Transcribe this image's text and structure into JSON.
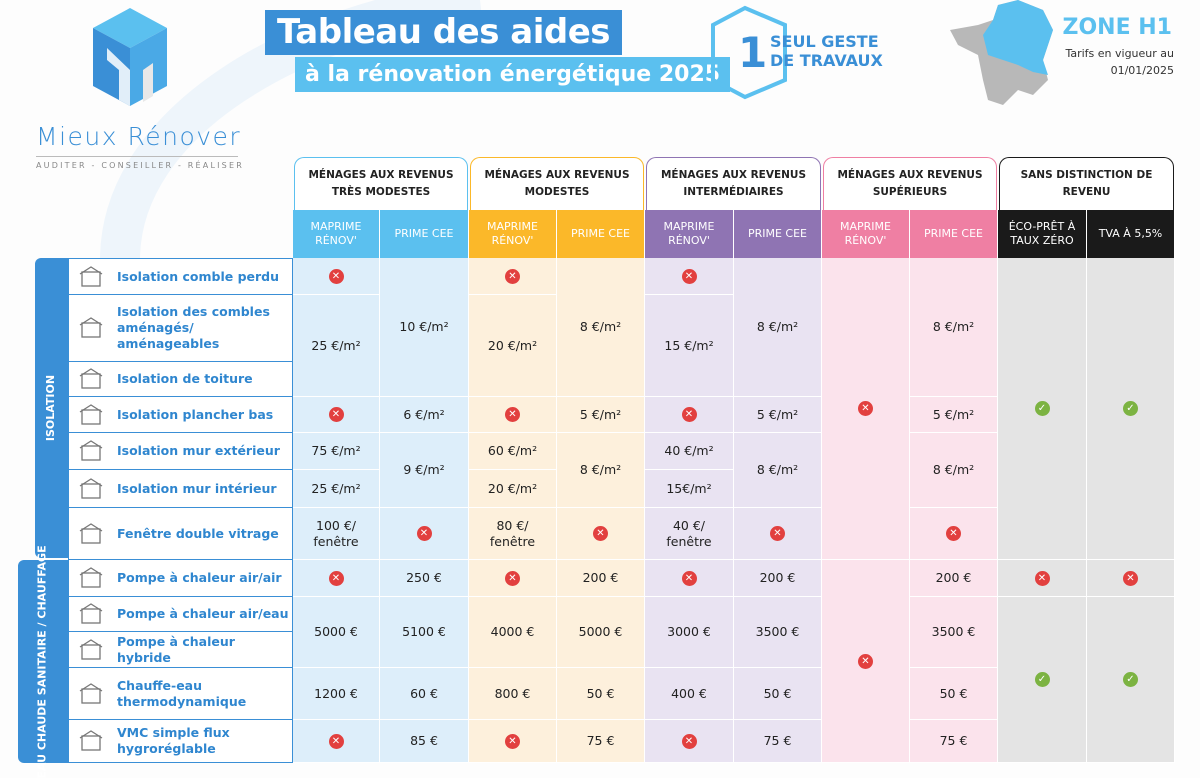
{
  "header": {
    "title": "Tableau des aides",
    "subtitle": "à la rénovation énergétique 2025",
    "badge_number": "1",
    "badge_text": "SEUL GESTE DE TRAVAUX",
    "zone": "ZONE H1",
    "tarifs": "Tarifs en vigueur au 01/01/2025"
  },
  "brand": {
    "name": "Mieux Rénover",
    "tagline": "AUDITER - CONSEILLER - RÉALISER"
  },
  "colors": {
    "blue": "#3a8fd6",
    "lightblue": "#5bc0ef",
    "orange": "#fbb829",
    "purple": "#8f74b3",
    "pink": "#ef7fa3",
    "black": "#1a1a1a"
  },
  "groups": [
    "MÉNAGES AUX REVENUS TRÈS MODESTES",
    "MÉNAGES AUX REVENUS MODESTES",
    "MÉNAGES AUX REVENUS INTERMÉDIAIRES",
    "MÉNAGES AUX REVENUS SUPÉRIEURS",
    "SANS DISTINCTION DE REVENU"
  ],
  "subheaders": [
    "MAPRIME RÉNOV'",
    "PRIME CEE",
    "MAPRIME RÉNOV'",
    "PRIME CEE",
    "MAPRIME RÉNOV'",
    "PRIME CEE",
    "MAPRIME RÉNOV'",
    "PRIME CEE",
    "ÉCO-PRÊT À TAUX ZÉRO",
    "TVA À 5,5%"
  ],
  "categories": [
    "ISOLATION",
    "EAU CHAUDE SANITAIRE / CHAUFFAGE"
  ],
  "rows": [
    {
      "label": "Isolation comble perdu",
      "icon": "attic-icon"
    },
    {
      "label": "Isolation des combles aménagés/ aménageables",
      "icon": "loft-icon"
    },
    {
      "label": "Isolation de toiture",
      "icon": "roof-icon"
    },
    {
      "label": "Isolation plancher bas",
      "icon": "floor-icon"
    },
    {
      "label": "Isolation mur extérieur",
      "icon": "exterior-wall-icon"
    },
    {
      "label": "Isolation mur intérieur",
      "icon": "interior-wall-icon"
    },
    {
      "label": "Fenêtre double vitrage",
      "icon": "window-icon"
    },
    {
      "label": "Pompe à chaleur air/air",
      "icon": "air-conditioner-icon"
    },
    {
      "label": "Pompe à chaleur air/eau",
      "icon": "fan-icon"
    },
    {
      "label": "Pompe à chaleur hybride",
      "icon": "heat-pump-icon"
    },
    {
      "label": "Chauffe-eau thermodynamique",
      "icon": "water-heater-icon"
    },
    {
      "label": "VMC simple flux hygroréglable",
      "icon": "ventilation-icon"
    }
  ],
  "columns": [
    [
      "x",
      "25 €/m²",
      "x",
      "75 €/m²",
      "25 €/m²",
      "100 €/ fenêtre",
      "x",
      "5000 €",
      "1200 €",
      "x"
    ],
    [
      "10 €/m²",
      "6 €/m²",
      "9 €/m²",
      "x",
      "250 €",
      "5100 €",
      "60 €",
      "85 €"
    ],
    [
      "x",
      "20 €/m²",
      "x",
      "60 €/m²",
      "20 €/m²",
      "80 €/ fenêtre",
      "x",
      "4000 €",
      "800 €",
      "x"
    ],
    [
      "8 €/m²",
      "5 €/m²",
      "8 €/m²",
      "x",
      "200 €",
      "5000 €",
      "50 €",
      "75 €"
    ],
    [
      "x",
      "15 €/m²",
      "x",
      "40 €/m²",
      "15€/m²",
      "40 €/ fenêtre",
      "x",
      "3000 €",
      "400 €",
      "x"
    ],
    [
      "8 €/m²",
      "5 €/m²",
      "8 €/m²",
      "x",
      "200 €",
      "3500 €",
      "50 €",
      "75 €"
    ],
    [
      "x",
      "x"
    ],
    [
      "8 €/m²",
      "5 €/m²",
      "8 €/m²",
      "x",
      "200 €",
      "3500 €",
      "50 €",
      "75 €"
    ],
    [
      "ok",
      "x",
      "ok"
    ],
    [
      "ok",
      "x",
      "ok"
    ]
  ]
}
